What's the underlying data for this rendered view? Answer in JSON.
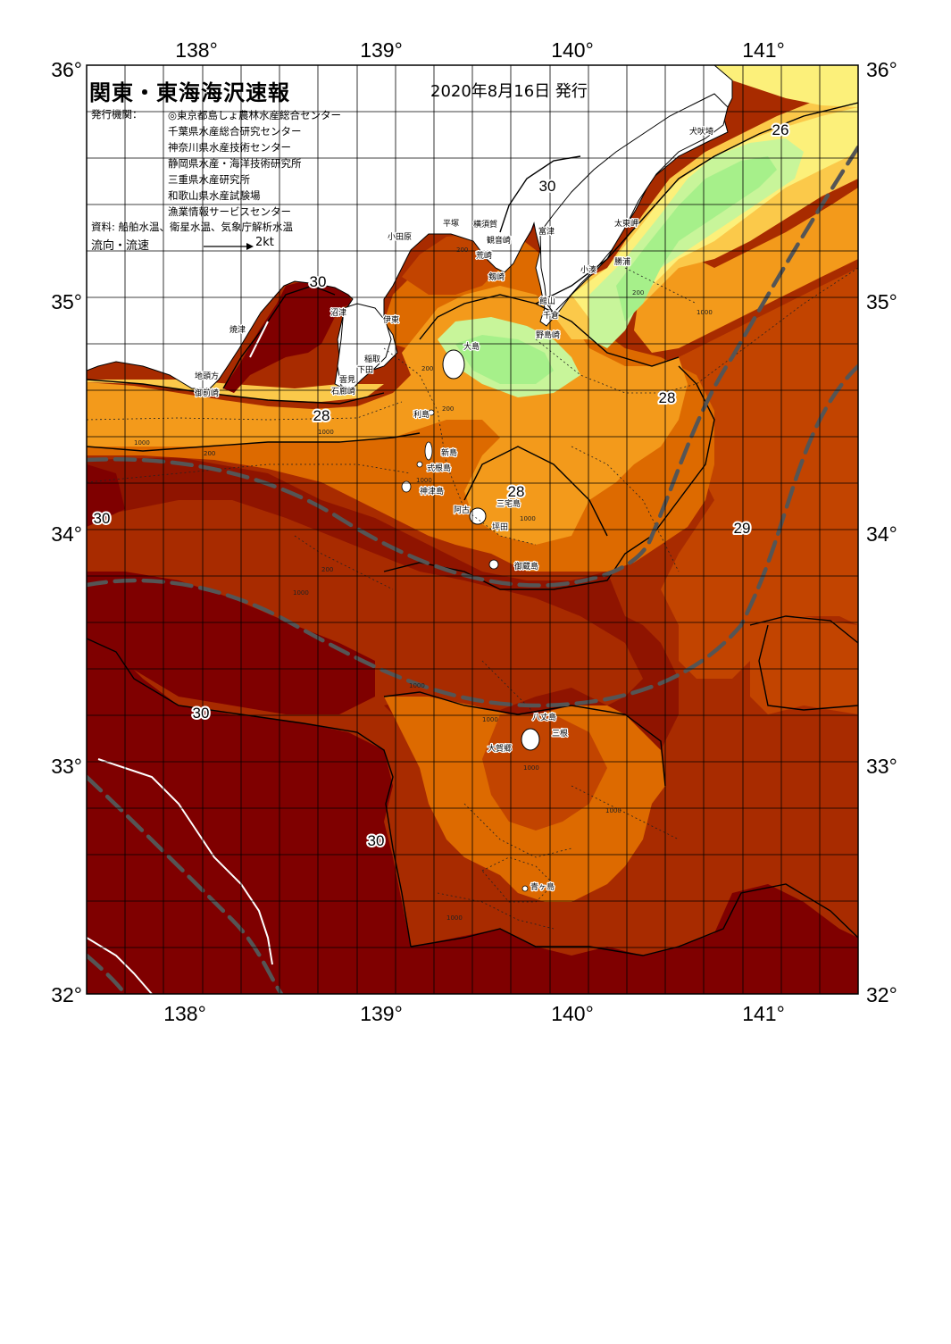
{
  "map": {
    "title": "関東・東海海沢速報",
    "issue_date": "2020年8月16日 発行",
    "publishers_label": "発行機関：",
    "publishers": [
      "◎東京都島しょ農林水産総合センター",
      "千葉県水産総合研究センター",
      "神奈川県水産技術センター",
      "静岡県水産・海洋技術研究所",
      "三重県水産研究所",
      "和歌山県水産試験場",
      "漁業情報サービスセンター"
    ],
    "sources": "資料: 船舶水温、衛星水温、気象庁解析水温",
    "legend": {
      "label": "流向・流速",
      "unit": "2kt"
    },
    "longitude_ticks": [
      "138°",
      "139°",
      "140°",
      "141°"
    ],
    "latitude_ticks": [
      "36°",
      "35°",
      "34°",
      "33°",
      "32°"
    ],
    "isotherm_labels": [
      "30",
      "30",
      "28",
      "26",
      "28",
      "28",
      "29",
      "30",
      "30",
      "30"
    ],
    "place_names": [
      "犬吠埼",
      "太東岬",
      "勝浦",
      "小湊",
      "館山",
      "千倉",
      "野島崎",
      "富津",
      "観音崎",
      "横須賀",
      "平塚",
      "小田原",
      "剱崎",
      "荒崎",
      "沼津",
      "焼津",
      "地頭方",
      "御前崎",
      "伊東",
      "稲取",
      "下田",
      "石廊崎",
      "雲見",
      "大島",
      "利島",
      "新島",
      "式根島",
      "神津島",
      "三宅島",
      "阿古",
      "坪田",
      "御蔵島",
      "八丈島",
      "三根",
      "大賀郷",
      "青ヶ島"
    ],
    "depth_labels": [
      "1000",
      "200",
      "200",
      "200",
      "1000",
      "1000",
      "1000",
      "1000",
      "1000",
      "200",
      "200",
      "1000",
      "1000",
      "1000",
      "1000",
      "200",
      "1000"
    ],
    "colors": {
      "land": "#ffffff",
      "very_warm": "#7f0000",
      "warm": "#8f1400",
      "mid_warm": "#a82b00",
      "mid": "#c24400",
      "orange": "#dd6a00",
      "light_orange": "#f39a1b",
      "yellow_orange": "#fbc94a",
      "yellow": "#fcf07a",
      "light_green": "#c8f59a",
      "green": "#a6f08a",
      "current_axis": "#555555"
    }
  }
}
